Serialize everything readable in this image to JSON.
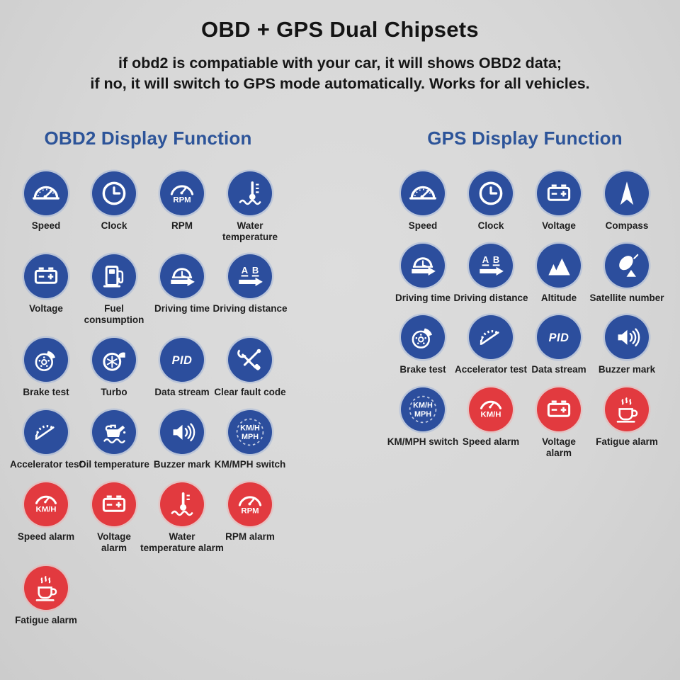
{
  "title": "OBD + GPS Dual Chipsets",
  "subtitle_line1": "if obd2 is compatiable with your car, it will shows OBD2 data;",
  "subtitle_line2": "if no, it will switch to GPS mode automatically. Works for all vehicles.",
  "colors": {
    "icon_blue": "#2c4e9d",
    "icon_red": "#e23a3f",
    "header_blue": "#2d5499",
    "background": "#d8d8d8",
    "text_dark": "#161616"
  },
  "sections": [
    {
      "header": "OBD2 Display Function",
      "items": [
        {
          "label": "Speed",
          "icon": "speedometer",
          "color": "blue"
        },
        {
          "label": "Clock",
          "icon": "clock",
          "color": "blue"
        },
        {
          "label": "RPM",
          "icon": "rpm-gauge",
          "color": "blue"
        },
        {
          "label": "Water\ntemperature",
          "icon": "water-temperature",
          "color": "blue"
        },
        {
          "label": "Voltage",
          "icon": "battery",
          "color": "blue"
        },
        {
          "label": "Fuel\nconsumption",
          "icon": "fuel-pump",
          "color": "blue"
        },
        {
          "label": "Driving time",
          "icon": "driving-time",
          "color": "blue"
        },
        {
          "label": "Driving distance",
          "icon": "driving-distance",
          "color": "blue"
        },
        {
          "label": "Brake test",
          "icon": "brake-disc",
          "color": "blue"
        },
        {
          "label": "Turbo",
          "icon": "turbo",
          "color": "blue"
        },
        {
          "label": "Data stream",
          "icon": "pid",
          "color": "blue"
        },
        {
          "label": "Clear fault code",
          "icon": "tools",
          "color": "blue"
        },
        {
          "label": "Accelerator test",
          "icon": "accelerator-gauge",
          "color": "blue"
        },
        {
          "label": "Oil temperature",
          "icon": "oil-can",
          "color": "blue"
        },
        {
          "label": "Buzzer mark",
          "icon": "speaker",
          "color": "blue"
        },
        {
          "label": "KM/MPH switch",
          "icon": "kmh-mph-switch",
          "color": "blue"
        },
        {
          "label": "Speed alarm",
          "icon": "kmh-gauge",
          "color": "red"
        },
        {
          "label": "Voltage\nalarm",
          "icon": "battery",
          "color": "red"
        },
        {
          "label": "Water\ntemperature alarm",
          "icon": "thermometer-wave",
          "color": "red"
        },
        {
          "label": "RPM alarm",
          "icon": "rpm-gauge",
          "color": "red"
        },
        {
          "label": "Fatigue alarm",
          "icon": "coffee-cup",
          "color": "red"
        }
      ]
    },
    {
      "header": "GPS Display Function",
      "items": [
        {
          "label": "Speed",
          "icon": "speedometer",
          "color": "blue"
        },
        {
          "label": "Clock",
          "icon": "clock",
          "color": "blue"
        },
        {
          "label": "Voltage",
          "icon": "battery",
          "color": "blue"
        },
        {
          "label": "Compass",
          "icon": "compass",
          "color": "blue"
        },
        {
          "label": "Driving time",
          "icon": "driving-time",
          "color": "blue"
        },
        {
          "label": "Driving distance",
          "icon": "driving-distance",
          "color": "blue"
        },
        {
          "label": "Altitude",
          "icon": "mountains",
          "color": "blue"
        },
        {
          "label": "Satellite number",
          "icon": "satellite",
          "color": "blue"
        },
        {
          "label": "Brake test",
          "icon": "brake-disc",
          "color": "blue"
        },
        {
          "label": "Accelerator test",
          "icon": "accelerator-gauge",
          "color": "blue"
        },
        {
          "label": "Data stream",
          "icon": "pid",
          "color": "blue"
        },
        {
          "label": "Buzzer mark",
          "icon": "speaker",
          "color": "blue"
        },
        {
          "label": "KM/MPH switch",
          "icon": "kmh-mph-switch",
          "color": "blue"
        },
        {
          "label": "Speed alarm",
          "icon": "kmh-gauge",
          "color": "red"
        },
        {
          "label": "Voltage\nalarm",
          "icon": "battery",
          "color": "red"
        },
        {
          "label": "Fatigue alarm",
          "icon": "coffee-cup",
          "color": "red"
        }
      ]
    }
  ]
}
